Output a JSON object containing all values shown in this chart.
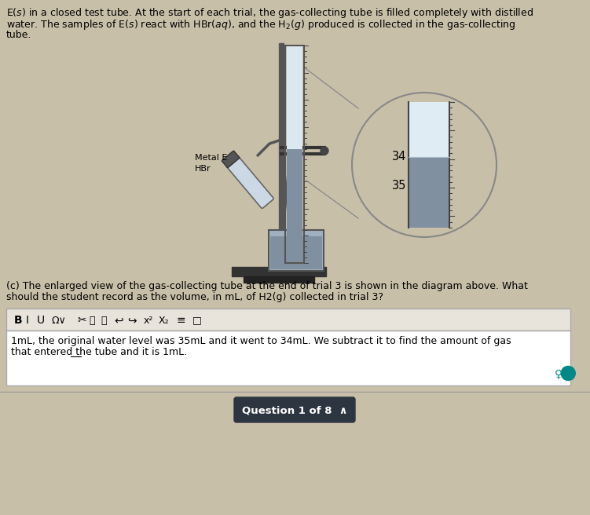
{
  "bg_color": "#c8bfa8",
  "answer_text_line1": "1mL, the original water level was 35mL and it went to 34mL. We subtract it to find the amount of gas",
  "answer_text_line2": "that entered the tube and it is 1mL.",
  "question_footer": "Question 1 of 8",
  "mark_34": "34",
  "mark_35": "35",
  "metal_e_label": "Metal E",
  "hbr_label": "HBr",
  "water_color": "#8090a0",
  "gas_color": "#dce8f0",
  "tube_bg": "#c8d8e8",
  "stand_color": "#555555",
  "trough_color": "#a0b0c0",
  "circle_bg": "#c8bfa8",
  "toolbar_bg": "#e8e4dc",
  "answer_bg": "#ffffff",
  "btn_color": "#2d3540",
  "separator_color": "#999999",
  "line1": "E(s) in a closed test tube. At the start of each trial, the gas-collecting tube is filled completely with distilled",
  "line2": "water. The samples of E(s) react with HBr(aq), and the H2(g) produced is collected in the gas-collecting",
  "line3": "tube.",
  "qc_line1": "(c) The enlarged view of the gas-collecting tube at the end of trial 3 is shown in the diagram above. What",
  "qc_line2": "should the student record as the volume, in mL, of H2(g) collected in trial 3?"
}
